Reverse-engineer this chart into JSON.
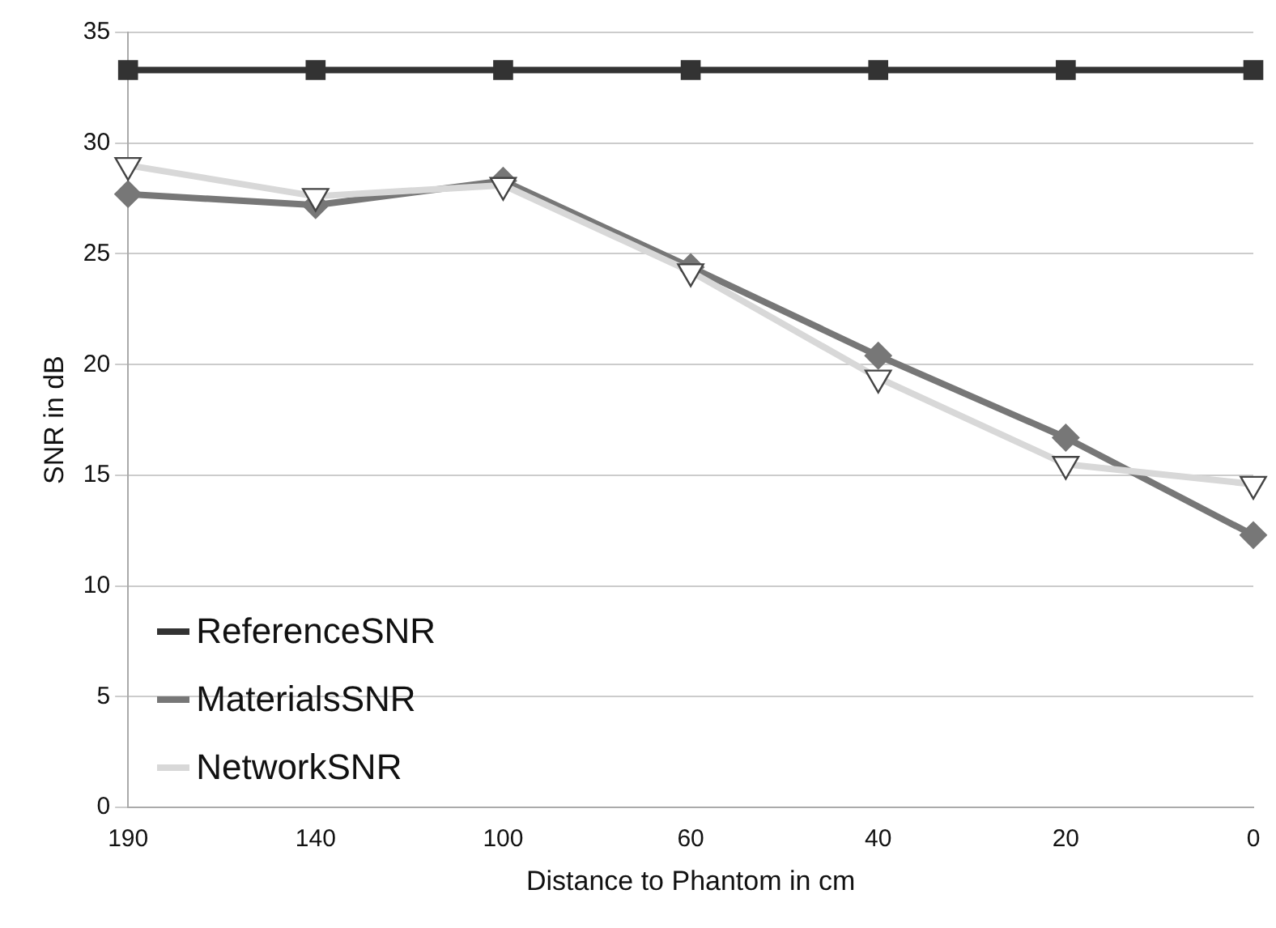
{
  "chart_data": {
    "type": "line",
    "xlabel": "Distance to Phantom in cm",
    "ylabel": "SNR in dB",
    "categories": [
      "190",
      "140",
      "100",
      "60",
      "40",
      "20",
      "0"
    ],
    "series": [
      {
        "name": "ReferenceSNR",
        "color": "#333333",
        "marker": "square",
        "values": [
          33.3,
          33.3,
          33.3,
          33.3,
          33.3,
          33.3,
          33.3
        ]
      },
      {
        "name": "MaterialsSNR",
        "color": "#777777",
        "marker": "diamond",
        "values": [
          27.7,
          27.2,
          28.3,
          24.4,
          20.4,
          16.7,
          12.3
        ]
      },
      {
        "name": "NetworkSNR",
        "color": "#d8d8d8",
        "marker": "triangle",
        "values": [
          29.0,
          27.6,
          28.1,
          24.2,
          19.4,
          15.5,
          14.6
        ]
      }
    ],
    "ylim": [
      0,
      35
    ],
    "yticks": [
      0,
      5,
      10,
      15,
      20,
      25,
      30,
      35
    ],
    "grid": "y",
    "legend": "bottom left"
  }
}
